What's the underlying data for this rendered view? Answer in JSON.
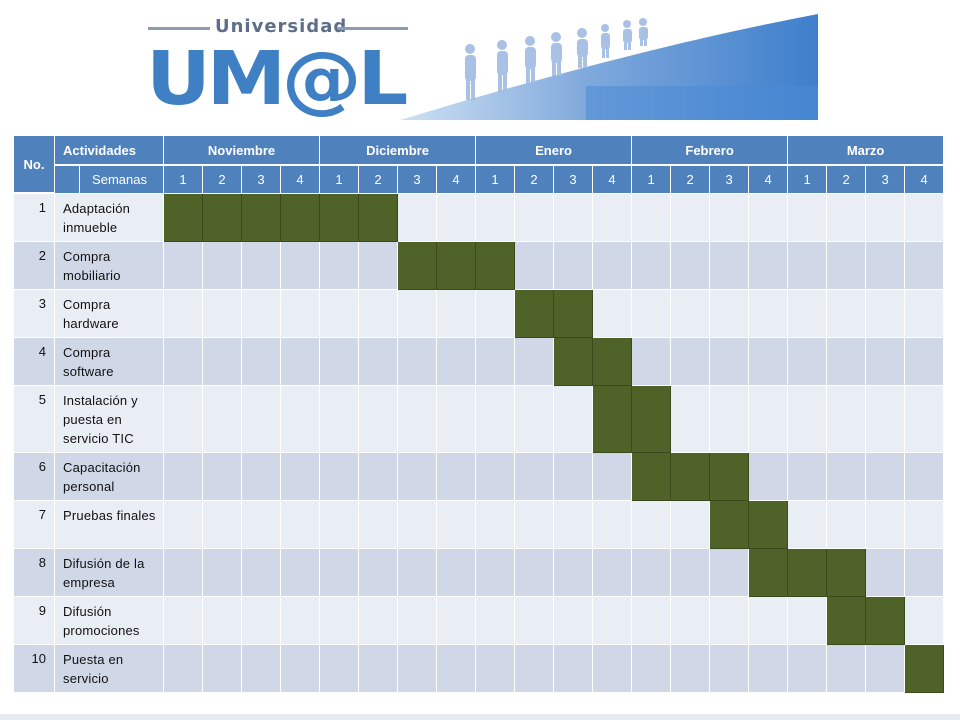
{
  "logo": {
    "top_text": "Universidad",
    "mark_prefix": "UM",
    "mark_at": "@",
    "mark_suffix": "L",
    "brand_color": "#3f7fc4"
  },
  "table": {
    "header_color": "#4f81bd",
    "bar_color": "#4f6228",
    "row_colors": [
      "#e9edf4",
      "#d0d8e8"
    ],
    "col_no": "No.",
    "col_activities": "Actividades",
    "semanas_label": "Semanas",
    "months": [
      {
        "name": "Noviembre",
        "weeks": [
          "1",
          "2",
          "3",
          "4"
        ]
      },
      {
        "name": "Diciembre",
        "weeks": [
          "1",
          "2",
          "3",
          "4"
        ]
      },
      {
        "name": "Enero",
        "weeks": [
          "1",
          "2",
          "3",
          "4"
        ]
      },
      {
        "name": "Febrero",
        "weeks": [
          "1",
          "2",
          "3",
          "4"
        ]
      },
      {
        "name": "Marzo",
        "weeks": [
          "1",
          "2",
          "3",
          "4"
        ]
      }
    ],
    "rows": [
      {
        "no": "1",
        "activity": "Adaptación inmueble",
        "weeks_active": [
          1,
          2,
          3,
          4,
          5,
          6
        ]
      },
      {
        "no": "2",
        "activity": "Compra mobiliario",
        "weeks_active": [
          7,
          8,
          9
        ]
      },
      {
        "no": "3",
        "activity": "Compra hardware",
        "weeks_active": [
          10,
          11
        ]
      },
      {
        "no": "4",
        "activity": "Compra software",
        "weeks_active": [
          11,
          12
        ]
      },
      {
        "no": "5",
        "activity": "Instalación y puesta en servicio TIC",
        "weeks_active": [
          12,
          13
        ]
      },
      {
        "no": "6",
        "activity": "Capacitación personal",
        "weeks_active": [
          13,
          14,
          15
        ]
      },
      {
        "no": "7",
        "activity": "Pruebas finales",
        "weeks_active": [
          15,
          16
        ]
      },
      {
        "no": "8",
        "activity": "Difusión de la empresa",
        "weeks_active": [
          16,
          17,
          18
        ]
      },
      {
        "no": "9",
        "activity": "Difusión promociones",
        "weeks_active": [
          18,
          19
        ]
      },
      {
        "no": "10",
        "activity": "Puesta en servicio",
        "weeks_active": [
          20
        ]
      }
    ]
  }
}
